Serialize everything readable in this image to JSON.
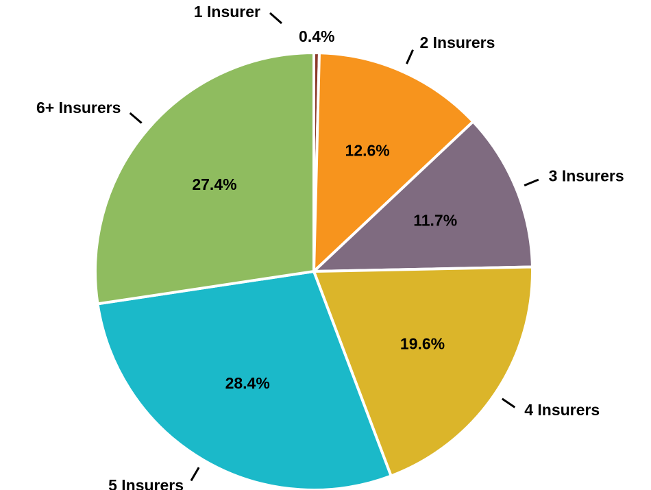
{
  "chart_data": {
    "type": "pie",
    "categories": [
      "1 Insurer",
      "2 Insurers",
      "3 Insurers",
      "4 Insurers",
      "5 Insurers",
      "6+ Insurers"
    ],
    "values": [
      0.4,
      12.6,
      11.7,
      19.6,
      28.4,
      27.4
    ],
    "value_labels": [
      "0.4%",
      "12.6%",
      "11.7%",
      "19.6%",
      "28.4%",
      "27.4%"
    ],
    "colors": [
      "#8b3a2a",
      "#f7941d",
      "#7f6b80",
      "#dbb52a",
      "#1bb9c9",
      "#8fbc5f"
    ]
  }
}
